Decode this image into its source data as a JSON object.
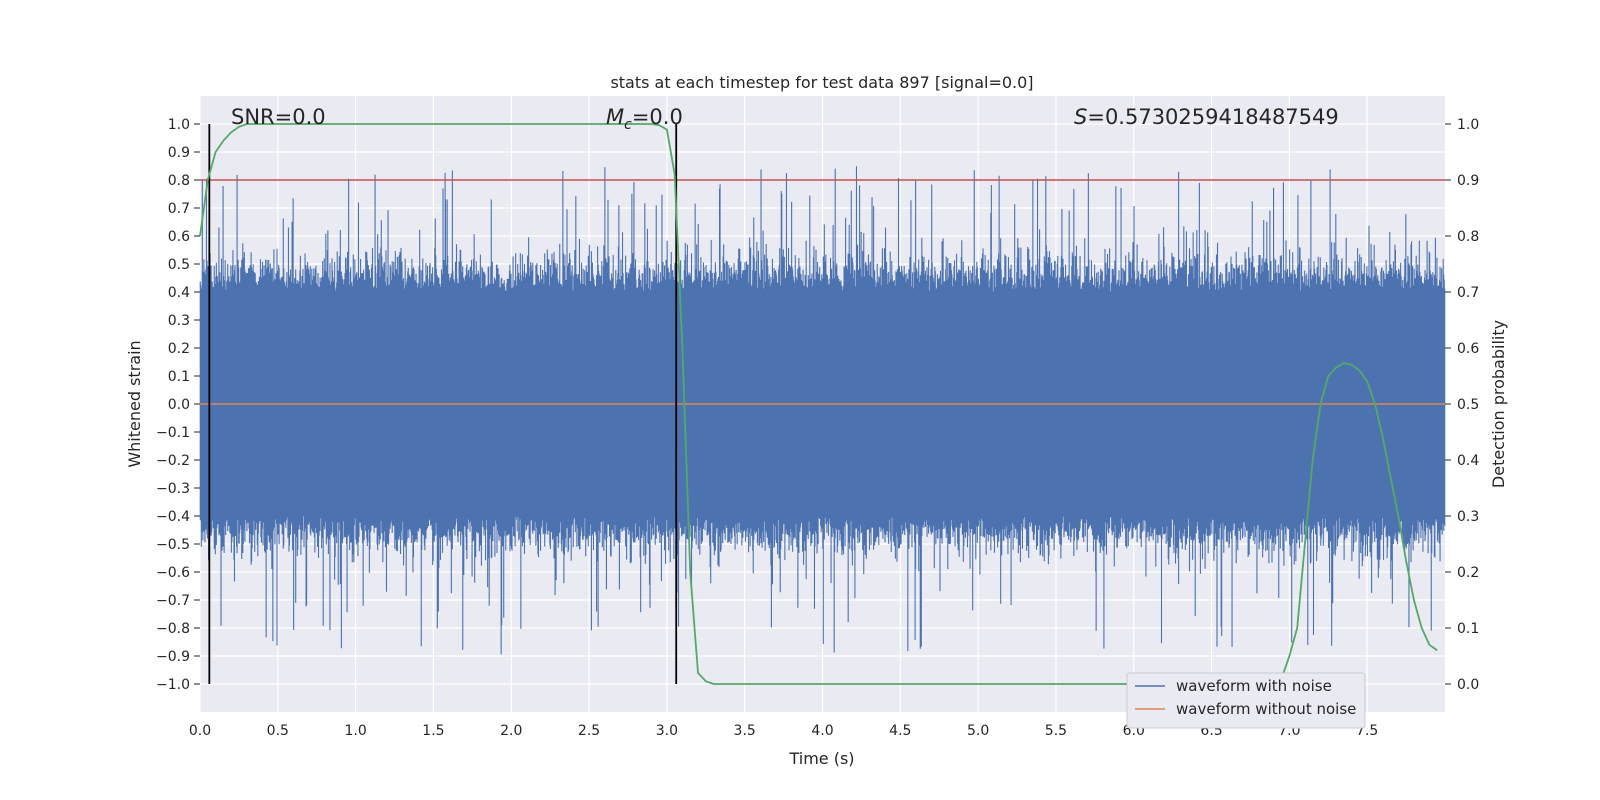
{
  "chart_data": {
    "type": "line",
    "title": "stats at each timestep for test data 897 [signal=0.0]",
    "xlabel": "Time (s)",
    "ylabel": "Whitened strain",
    "y2label": "Detection probability",
    "xlim": [
      0,
      8
    ],
    "ylim": [
      -1.1,
      1.1
    ],
    "y2lim": [
      -0.05,
      1.05
    ],
    "xticks": [
      "0.0",
      "0.5",
      "1.0",
      "1.5",
      "2.0",
      "2.5",
      "3.0",
      "3.5",
      "4.0",
      "4.5",
      "5.0",
      "5.5",
      "6.0",
      "6.5",
      "7.0",
      "7.5"
    ],
    "yticks": [
      "1.0",
      "0.9",
      "0.8",
      "0.7",
      "0.6",
      "0.5",
      "0.4",
      "0.3",
      "0.2",
      "0.1",
      "0.0",
      "−0.1",
      "−0.2",
      "−0.3",
      "−0.4",
      "−0.5",
      "−0.6",
      "−0.7",
      "−0.8",
      "−0.9",
      "−1.0"
    ],
    "y2ticks": [
      "1.0",
      "0.9",
      "0.8",
      "0.7",
      "0.6",
      "0.5",
      "0.4",
      "0.3",
      "0.2",
      "0.1",
      "0.0"
    ],
    "grid": true,
    "legend_position": "lower-right",
    "annotations": {
      "snr": "SNR=0.0",
      "mc_symbol": "M",
      "mc_sub": "c",
      "mc_value": "=0.0",
      "s_symbol": "S",
      "s_value": "=0.5730259418487549"
    },
    "threshold_line": {
      "value": 0.8,
      "color": "#c44e52"
    },
    "vertical_lines": [
      0.06,
      3.06
    ],
    "series": [
      {
        "name": "waveform with noise",
        "color": "#4c72b0",
        "description_envelope": "dense noise, typical band about +/-0.45 with spikes to +/-1.0"
      },
      {
        "name": "waveform without noise",
        "color": "#dd8452",
        "values_constant": 0.0
      },
      {
        "name": "detection probability",
        "color": "#55a868",
        "axis": "right",
        "x": [
          0.0,
          0.05,
          0.1,
          0.15,
          0.2,
          0.25,
          0.3,
          0.4,
          0.5,
          1.0,
          2.0,
          2.5,
          2.8,
          2.9,
          2.95,
          3.0,
          3.05,
          3.1,
          3.15,
          3.2,
          3.25,
          3.3,
          3.5,
          4.0,
          5.0,
          6.0,
          6.5,
          6.8,
          6.9,
          6.95,
          7.0,
          7.05,
          7.1,
          7.15,
          7.2,
          7.25,
          7.3,
          7.35,
          7.4,
          7.45,
          7.5,
          7.55,
          7.6,
          7.65,
          7.7,
          7.75,
          7.8,
          7.85,
          7.9,
          7.95
        ],
        "values": [
          0.8,
          0.9,
          0.95,
          0.97,
          0.985,
          0.995,
          1.0,
          1.0,
          1.0,
          1.0,
          1.0,
          1.0,
          1.0,
          1.0,
          0.998,
          0.99,
          0.91,
          0.6,
          0.2,
          0.02,
          0.005,
          0.0,
          0.0,
          0.0,
          0.0,
          0.0,
          0.0,
          0.0,
          0.0,
          0.01,
          0.05,
          0.1,
          0.25,
          0.4,
          0.5,
          0.55,
          0.565,
          0.573,
          0.57,
          0.56,
          0.54,
          0.5,
          0.44,
          0.37,
          0.3,
          0.22,
          0.15,
          0.1,
          0.07,
          0.06
        ]
      }
    ]
  }
}
